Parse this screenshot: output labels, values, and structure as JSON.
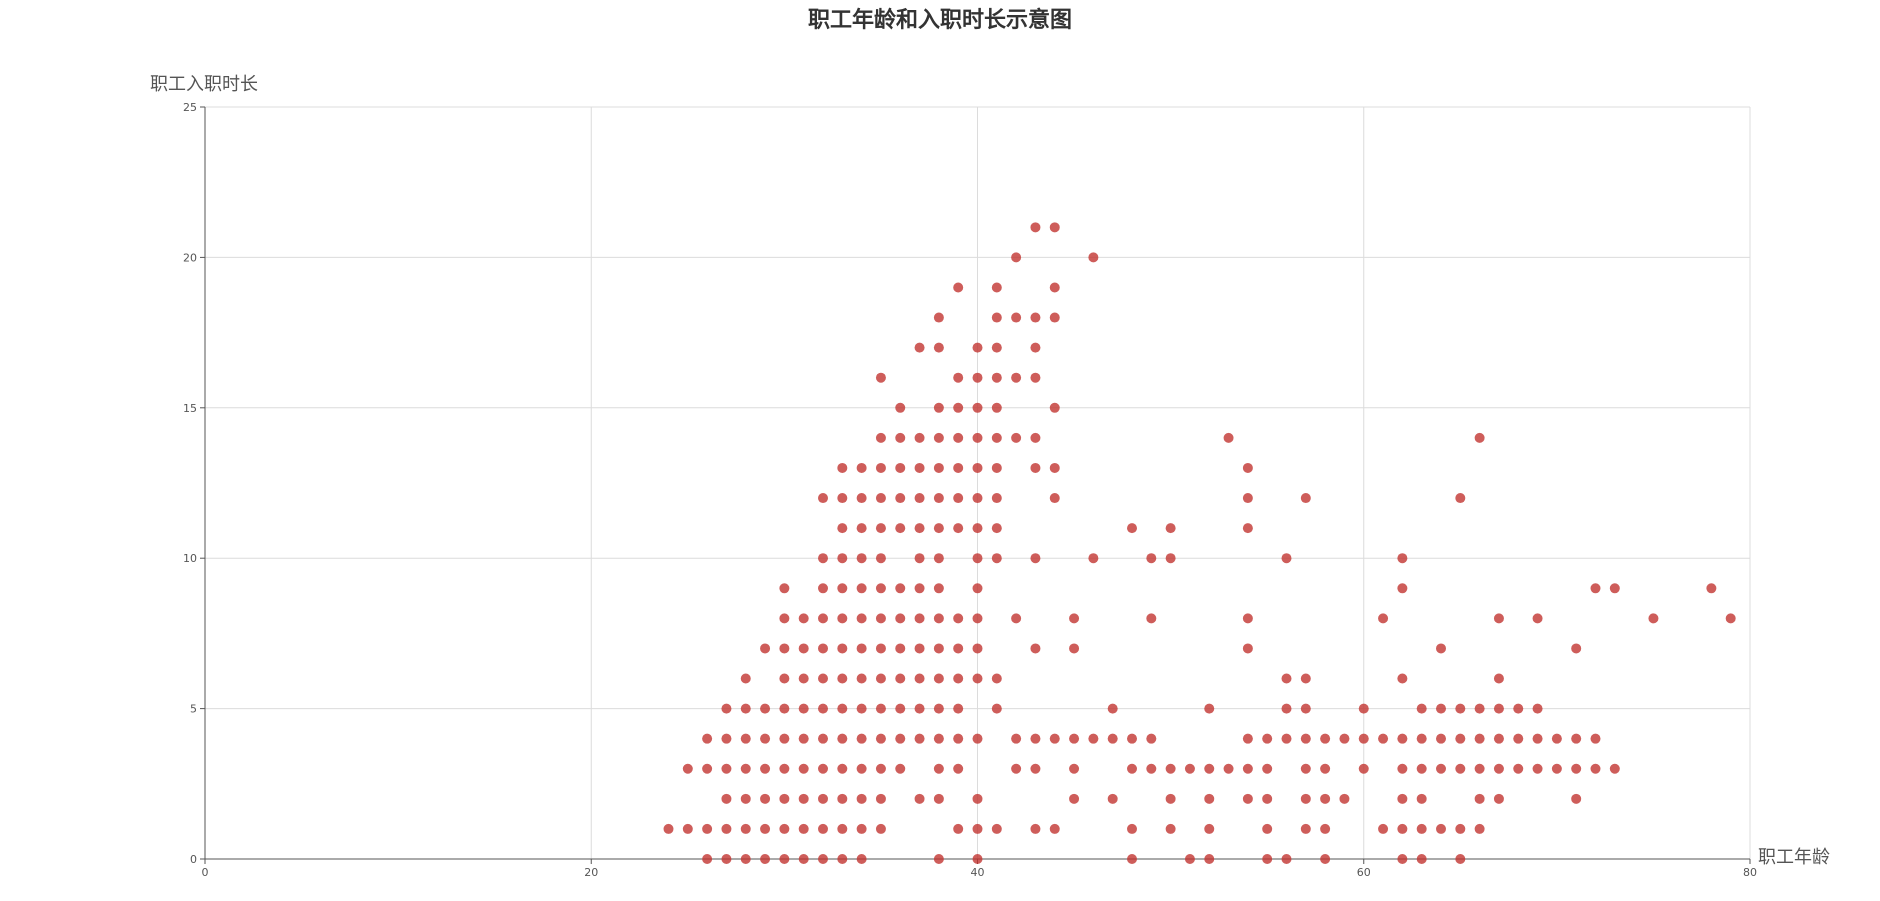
{
  "chart_data": {
    "type": "scatter",
    "title": "职工年龄和入职时长示意图",
    "xlabel": "职工年龄",
    "ylabel": "职工入职时长",
    "xlim": [
      0,
      80
    ],
    "ylim": [
      0,
      25
    ],
    "xticks": [
      "0",
      "20",
      "40",
      "60",
      "80"
    ],
    "yticks": [
      "0",
      "5",
      "10",
      "15",
      "20",
      "25"
    ],
    "grid": true,
    "point_color": "#c23531",
    "points": [
      [
        24,
        1
      ],
      [
        25,
        1
      ],
      [
        25,
        3
      ],
      [
        26,
        0
      ],
      [
        26,
        1
      ],
      [
        26,
        3
      ],
      [
        26,
        4
      ],
      [
        27,
        0
      ],
      [
        27,
        1
      ],
      [
        27,
        2
      ],
      [
        27,
        3
      ],
      [
        27,
        4
      ],
      [
        27,
        5
      ],
      [
        28,
        0
      ],
      [
        28,
        1
      ],
      [
        28,
        2
      ],
      [
        28,
        3
      ],
      [
        28,
        4
      ],
      [
        28,
        5
      ],
      [
        28,
        6
      ],
      [
        29,
        0
      ],
      [
        29,
        1
      ],
      [
        29,
        2
      ],
      [
        29,
        3
      ],
      [
        29,
        4
      ],
      [
        29,
        5
      ],
      [
        29,
        7
      ],
      [
        30,
        0
      ],
      [
        30,
        1
      ],
      [
        30,
        2
      ],
      [
        30,
        3
      ],
      [
        30,
        4
      ],
      [
        30,
        5
      ],
      [
        30,
        6
      ],
      [
        30,
        7
      ],
      [
        30,
        8
      ],
      [
        30,
        9
      ],
      [
        31,
        0
      ],
      [
        31,
        1
      ],
      [
        31,
        2
      ],
      [
        31,
        3
      ],
      [
        31,
        4
      ],
      [
        31,
        5
      ],
      [
        31,
        6
      ],
      [
        31,
        7
      ],
      [
        31,
        8
      ],
      [
        32,
        0
      ],
      [
        32,
        1
      ],
      [
        32,
        2
      ],
      [
        32,
        3
      ],
      [
        32,
        4
      ],
      [
        32,
        5
      ],
      [
        32,
        6
      ],
      [
        32,
        7
      ],
      [
        32,
        8
      ],
      [
        32,
        9
      ],
      [
        32,
        10
      ],
      [
        32,
        12
      ],
      [
        33,
        0
      ],
      [
        33,
        1
      ],
      [
        33,
        2
      ],
      [
        33,
        3
      ],
      [
        33,
        4
      ],
      [
        33,
        5
      ],
      [
        33,
        6
      ],
      [
        33,
        7
      ],
      [
        33,
        8
      ],
      [
        33,
        9
      ],
      [
        33,
        10
      ],
      [
        33,
        11
      ],
      [
        33,
        12
      ],
      [
        33,
        13
      ],
      [
        34,
        0
      ],
      [
        34,
        1
      ],
      [
        34,
        2
      ],
      [
        34,
        3
      ],
      [
        34,
        4
      ],
      [
        34,
        5
      ],
      [
        34,
        6
      ],
      [
        34,
        7
      ],
      [
        34,
        8
      ],
      [
        34,
        9
      ],
      [
        34,
        10
      ],
      [
        34,
        11
      ],
      [
        34,
        12
      ],
      [
        34,
        13
      ],
      [
        35,
        1
      ],
      [
        35,
        2
      ],
      [
        35,
        3
      ],
      [
        35,
        4
      ],
      [
        35,
        5
      ],
      [
        35,
        6
      ],
      [
        35,
        7
      ],
      [
        35,
        8
      ],
      [
        35,
        9
      ],
      [
        35,
        10
      ],
      [
        35,
        11
      ],
      [
        35,
        12
      ],
      [
        35,
        13
      ],
      [
        35,
        14
      ],
      [
        35,
        16
      ],
      [
        36,
        3
      ],
      [
        36,
        4
      ],
      [
        36,
        5
      ],
      [
        36,
        6
      ],
      [
        36,
        7
      ],
      [
        36,
        8
      ],
      [
        36,
        9
      ],
      [
        36,
        11
      ],
      [
        36,
        12
      ],
      [
        36,
        13
      ],
      [
        36,
        14
      ],
      [
        36,
        15
      ],
      [
        37,
        2
      ],
      [
        37,
        4
      ],
      [
        37,
        5
      ],
      [
        37,
        6
      ],
      [
        37,
        7
      ],
      [
        37,
        8
      ],
      [
        37,
        9
      ],
      [
        37,
        10
      ],
      [
        37,
        11
      ],
      [
        37,
        12
      ],
      [
        37,
        13
      ],
      [
        37,
        14
      ],
      [
        37,
        17
      ],
      [
        38,
        0
      ],
      [
        38,
        2
      ],
      [
        38,
        3
      ],
      [
        38,
        4
      ],
      [
        38,
        5
      ],
      [
        38,
        6
      ],
      [
        38,
        7
      ],
      [
        38,
        8
      ],
      [
        38,
        9
      ],
      [
        38,
        10
      ],
      [
        38,
        11
      ],
      [
        38,
        12
      ],
      [
        38,
        13
      ],
      [
        38,
        14
      ],
      [
        38,
        15
      ],
      [
        38,
        17
      ],
      [
        38,
        18
      ],
      [
        39,
        1
      ],
      [
        39,
        3
      ],
      [
        39,
        4
      ],
      [
        39,
        5
      ],
      [
        39,
        6
      ],
      [
        39,
        7
      ],
      [
        39,
        8
      ],
      [
        39,
        11
      ],
      [
        39,
        12
      ],
      [
        39,
        13
      ],
      [
        39,
        14
      ],
      [
        39,
        15
      ],
      [
        39,
        16
      ],
      [
        39,
        19
      ],
      [
        40,
        0
      ],
      [
        40,
        1
      ],
      [
        40,
        2
      ],
      [
        40,
        4
      ],
      [
        40,
        6
      ],
      [
        40,
        7
      ],
      [
        40,
        8
      ],
      [
        40,
        9
      ],
      [
        40,
        10
      ],
      [
        40,
        11
      ],
      [
        40,
        12
      ],
      [
        40,
        13
      ],
      [
        40,
        14
      ],
      [
        40,
        15
      ],
      [
        40,
        16
      ],
      [
        40,
        17
      ],
      [
        41,
        1
      ],
      [
        41,
        5
      ],
      [
        41,
        6
      ],
      [
        41,
        10
      ],
      [
        41,
        11
      ],
      [
        41,
        12
      ],
      [
        41,
        13
      ],
      [
        41,
        14
      ],
      [
        41,
        15
      ],
      [
        41,
        16
      ],
      [
        41,
        17
      ],
      [
        41,
        18
      ],
      [
        41,
        19
      ],
      [
        42,
        3
      ],
      [
        42,
        4
      ],
      [
        42,
        8
      ],
      [
        42,
        14
      ],
      [
        42,
        16
      ],
      [
        42,
        18
      ],
      [
        42,
        20
      ],
      [
        43,
        1
      ],
      [
        43,
        3
      ],
      [
        43,
        4
      ],
      [
        43,
        7
      ],
      [
        43,
        10
      ],
      [
        43,
        13
      ],
      [
        43,
        14
      ],
      [
        43,
        16
      ],
      [
        43,
        17
      ],
      [
        43,
        18
      ],
      [
        43,
        21
      ],
      [
        44,
        1
      ],
      [
        44,
        4
      ],
      [
        44,
        12
      ],
      [
        44,
        13
      ],
      [
        44,
        15
      ],
      [
        44,
        18
      ],
      [
        44,
        19
      ],
      [
        44,
        21
      ],
      [
        45,
        2
      ],
      [
        45,
        3
      ],
      [
        45,
        4
      ],
      [
        45,
        7
      ],
      [
        45,
        8
      ],
      [
        46,
        4
      ],
      [
        46,
        10
      ],
      [
        46,
        20
      ],
      [
        47,
        2
      ],
      [
        47,
        4
      ],
      [
        47,
        5
      ],
      [
        48,
        0
      ],
      [
        48,
        1
      ],
      [
        48,
        3
      ],
      [
        48,
        4
      ],
      [
        48,
        11
      ],
      [
        49,
        3
      ],
      [
        49,
        4
      ],
      [
        49,
        8
      ],
      [
        49,
        10
      ],
      [
        50,
        1
      ],
      [
        50,
        2
      ],
      [
        50,
        3
      ],
      [
        50,
        10
      ],
      [
        50,
        11
      ],
      [
        51,
        0
      ],
      [
        51,
        3
      ],
      [
        52,
        0
      ],
      [
        52,
        1
      ],
      [
        52,
        2
      ],
      [
        52,
        3
      ],
      [
        52,
        5
      ],
      [
        53,
        3
      ],
      [
        53,
        14
      ],
      [
        54,
        2
      ],
      [
        54,
        3
      ],
      [
        54,
        4
      ],
      [
        54,
        7
      ],
      [
        54,
        8
      ],
      [
        54,
        11
      ],
      [
        54,
        12
      ],
      [
        54,
        13
      ],
      [
        55,
        0
      ],
      [
        55,
        1
      ],
      [
        55,
        2
      ],
      [
        55,
        3
      ],
      [
        55,
        4
      ],
      [
        56,
        0
      ],
      [
        56,
        4
      ],
      [
        56,
        5
      ],
      [
        56,
        6
      ],
      [
        56,
        10
      ],
      [
        57,
        1
      ],
      [
        57,
        2
      ],
      [
        57,
        3
      ],
      [
        57,
        4
      ],
      [
        57,
        5
      ],
      [
        57,
        6
      ],
      [
        57,
        12
      ],
      [
        58,
        0
      ],
      [
        58,
        1
      ],
      [
        58,
        2
      ],
      [
        58,
        3
      ],
      [
        58,
        4
      ],
      [
        59,
        2
      ],
      [
        59,
        4
      ],
      [
        60,
        3
      ],
      [
        60,
        4
      ],
      [
        60,
        5
      ],
      [
        61,
        1
      ],
      [
        61,
        4
      ],
      [
        61,
        8
      ],
      [
        62,
        0
      ],
      [
        62,
        1
      ],
      [
        62,
        2
      ],
      [
        62,
        3
      ],
      [
        62,
        4
      ],
      [
        62,
        6
      ],
      [
        62,
        9
      ],
      [
        62,
        10
      ],
      [
        63,
        0
      ],
      [
        63,
        1
      ],
      [
        63,
        2
      ],
      [
        63,
        3
      ],
      [
        63,
        4
      ],
      [
        63,
        5
      ],
      [
        64,
        1
      ],
      [
        64,
        3
      ],
      [
        64,
        4
      ],
      [
        64,
        5
      ],
      [
        64,
        7
      ],
      [
        65,
        0
      ],
      [
        65,
        1
      ],
      [
        65,
        3
      ],
      [
        65,
        4
      ],
      [
        65,
        5
      ],
      [
        65,
        12
      ],
      [
        66,
        1
      ],
      [
        66,
        2
      ],
      [
        66,
        3
      ],
      [
        66,
        4
      ],
      [
        66,
        5
      ],
      [
        66,
        14
      ],
      [
        67,
        2
      ],
      [
        67,
        3
      ],
      [
        67,
        4
      ],
      [
        67,
        5
      ],
      [
        67,
        6
      ],
      [
        67,
        8
      ],
      [
        68,
        3
      ],
      [
        68,
        4
      ],
      [
        68,
        5
      ],
      [
        69,
        3
      ],
      [
        69,
        4
      ],
      [
        69,
        5
      ],
      [
        69,
        8
      ],
      [
        70,
        3
      ],
      [
        70,
        4
      ],
      [
        71,
        2
      ],
      [
        71,
        3
      ],
      [
        71,
        4
      ],
      [
        71,
        7
      ],
      [
        72,
        3
      ],
      [
        72,
        4
      ],
      [
        72,
        9
      ],
      [
        73,
        3
      ],
      [
        73,
        9
      ],
      [
        75,
        8
      ],
      [
        78,
        9
      ],
      [
        79,
        8
      ]
    ]
  }
}
